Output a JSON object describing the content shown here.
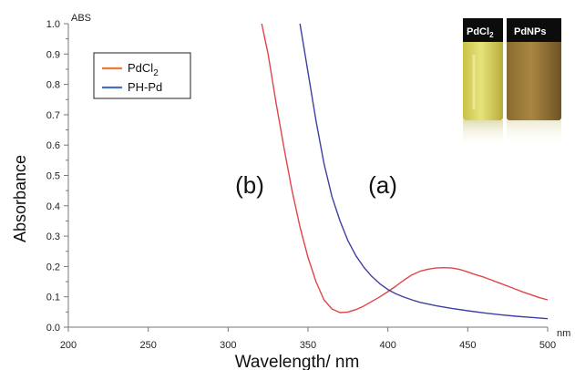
{
  "chart_data": {
    "type": "line",
    "title": "",
    "ylabel": "Absorbance",
    "xlabel": "Wavelength/ nm",
    "y_unit_tag": "ABS",
    "x_unit_tag": "nm",
    "xlim": [
      200,
      500
    ],
    "ylim": [
      0.0,
      1.0
    ],
    "x_ticks": [
      "200",
      "250",
      "300",
      "350",
      "400",
      "450",
      "500"
    ],
    "y_ticks": [
      "0.0",
      "0.1",
      "0.2",
      "0.3",
      "0.4",
      "0.5",
      "0.6",
      "0.7",
      "0.8",
      "0.9",
      "1.0"
    ],
    "grid": false,
    "legend_position": "top-left",
    "series": [
      {
        "name": "PdCl2",
        "legend_label": "PdCl",
        "legend_subscript": "2",
        "legend_color": "#ED7D31",
        "color": "#E0444A",
        "x": [
          321,
          325,
          330,
          335,
          340,
          345,
          350,
          355,
          360,
          365,
          370,
          375,
          380,
          385,
          390,
          395,
          400,
          405,
          410,
          415,
          420,
          425,
          430,
          435,
          440,
          445,
          450,
          455,
          460,
          465,
          470,
          475,
          480,
          485,
          490,
          495,
          500
        ],
        "y": [
          1.0,
          0.9,
          0.74,
          0.59,
          0.45,
          0.33,
          0.23,
          0.15,
          0.09,
          0.06,
          0.048,
          0.05,
          0.058,
          0.07,
          0.085,
          0.1,
          0.117,
          0.135,
          0.155,
          0.172,
          0.184,
          0.191,
          0.195,
          0.196,
          0.195,
          0.19,
          0.182,
          0.173,
          0.165,
          0.155,
          0.145,
          0.135,
          0.125,
          0.115,
          0.106,
          0.097,
          0.09
        ]
      },
      {
        "name": "PH-Pd",
        "legend_label": "PH-Pd",
        "legend_subscript": "",
        "legend_color": "#4472C4",
        "color": "#3F3FA3",
        "x": [
          345,
          350,
          355,
          360,
          365,
          370,
          375,
          380,
          385,
          390,
          395,
          400,
          405,
          410,
          415,
          420,
          430,
          440,
          450,
          460,
          470,
          480,
          490,
          500
        ],
        "y": [
          1.0,
          0.84,
          0.68,
          0.54,
          0.43,
          0.35,
          0.285,
          0.235,
          0.197,
          0.167,
          0.143,
          0.124,
          0.11,
          0.099,
          0.09,
          0.082,
          0.071,
          0.062,
          0.054,
          0.047,
          0.041,
          0.036,
          0.032,
          0.028
        ]
      }
    ],
    "annotations": [
      {
        "text": "(b)"
      },
      {
        "text": "(a)"
      }
    ],
    "inset": {
      "label_1": "PdCl",
      "label_1_sub": "2",
      "label_2": "PdNPs"
    }
  }
}
